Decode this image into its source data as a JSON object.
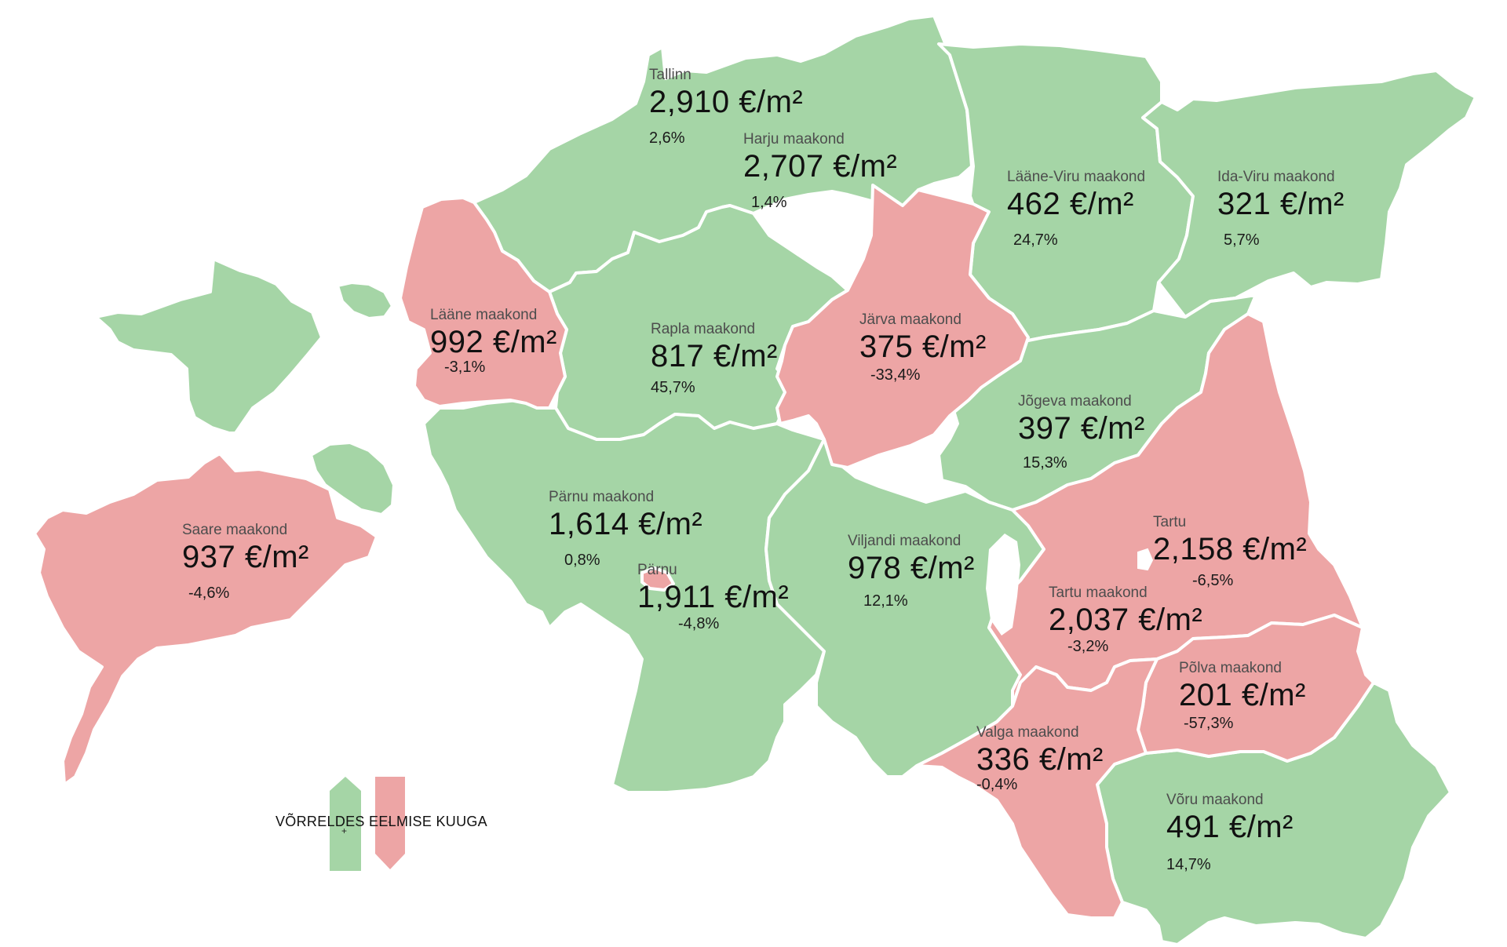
{
  "colors": {
    "increase": "#a5d5a6",
    "decrease": "#eda5a5"
  },
  "regions": {
    "tallinn": {
      "name": "Tallinn",
      "price": "2,910 €/m²",
      "change": "2,6%",
      "trend": "increase"
    },
    "harju": {
      "name": "Harju maakond",
      "price": "2,707 €/m²",
      "change": "1,4%",
      "trend": "increase"
    },
    "laaneviru": {
      "name": "Lääne-Viru maakond",
      "price": "462  €/m²",
      "change": "24,7%",
      "trend": "increase"
    },
    "idaviru": {
      "name": "Ida-Viru maakond",
      "price": "321   €/m²",
      "change": "5,7%",
      "trend": "increase"
    },
    "laane": {
      "name": "Lääne maakond",
      "price": "992  €/m²",
      "change": "-3,1%",
      "trend": "decrease"
    },
    "rapla": {
      "name": "Rapla maakond",
      "price": "817  €/m²",
      "change": "45,7%",
      "trend": "increase"
    },
    "jarva": {
      "name": "Järva maakond",
      "price": "375  €/m²",
      "change": "-33,4%",
      "trend": "decrease"
    },
    "jogeva": {
      "name": "Jõgeva maakond",
      "price": "397 €/m²",
      "change": "15,3%",
      "trend": "increase"
    },
    "saare": {
      "name": "Saare maakond",
      "price": "937    €/m²",
      "change": "-4,6%",
      "trend": "decrease"
    },
    "parnumk": {
      "name": "Pärnu maakond",
      "price": "1,614 €/m²",
      "change": "0,8%",
      "trend": "increase"
    },
    "parnu": {
      "name": "Pärnu",
      "price": "1,911 €/m²",
      "change": "-4,8%",
      "trend": "decrease"
    },
    "viljandi": {
      "name": "Viljandi maakond",
      "price": "978  €/m²",
      "change": "12,1%",
      "trend": "increase"
    },
    "tartu": {
      "name": "Tartu",
      "price": "2,158  €/m²",
      "change": "-6,5%",
      "trend": "decrease"
    },
    "tartumk": {
      "name": "Tartu maakond",
      "price": "2,037  €/m²",
      "change": "-3,2%",
      "trend": "decrease"
    },
    "polva": {
      "name": "Põlva maakond",
      "price": "201  €/m²",
      "change": "-57,3%",
      "trend": "decrease"
    },
    "valga": {
      "name": "Valga maakond",
      "price": "336 €/m²",
      "change": "-0,4%",
      "trend": "decrease"
    },
    "voru": {
      "name": "Võru maakond",
      "price": "491  €/m²",
      "change": "14,7%",
      "trend": "increase"
    }
  },
  "legend": {
    "plus": "+",
    "minus": "-",
    "caption": "VÕRRELDES EELMISE KUUGA"
  }
}
